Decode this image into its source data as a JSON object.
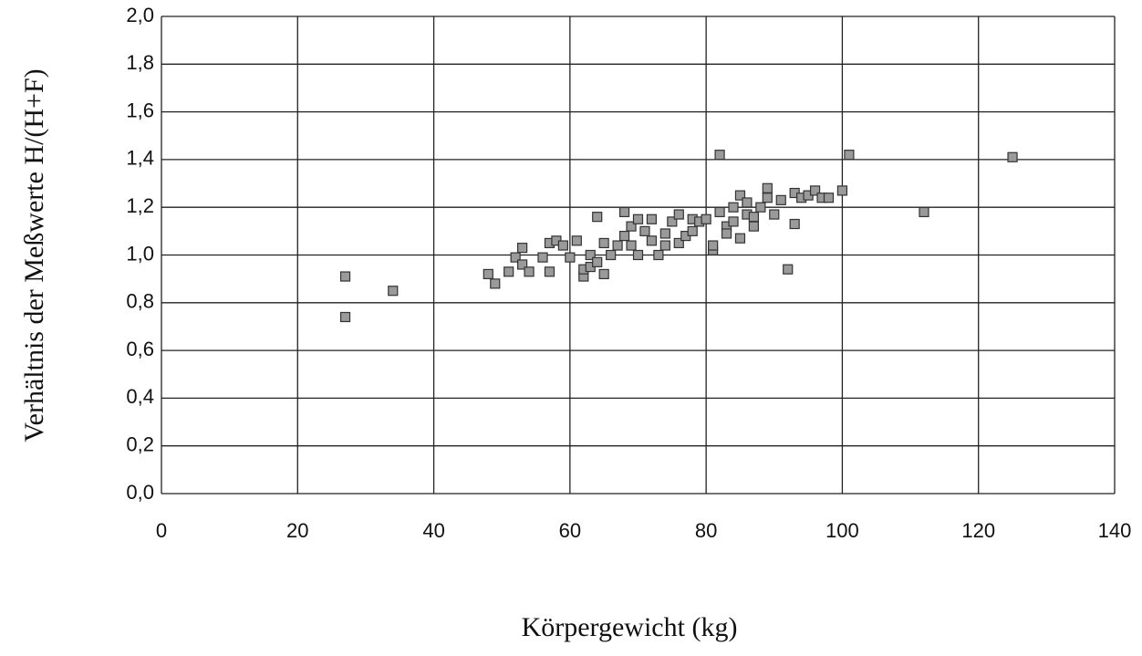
{
  "chart_data": {
    "type": "scatter",
    "xlabel": "Körpergewicht  (kg)",
    "ylabel": "Verhältnis der Meßwerte H/(H+F)",
    "x": [
      27,
      27,
      34,
      48,
      49,
      51,
      52,
      53,
      53,
      54,
      56,
      57,
      57,
      58,
      59,
      60,
      61,
      62,
      62,
      63,
      63,
      64,
      64,
      65,
      65,
      66,
      67,
      68,
      68,
      69,
      69,
      70,
      70,
      71,
      72,
      72,
      73,
      74,
      74,
      75,
      76,
      76,
      77,
      78,
      78,
      82,
      79,
      80,
      81,
      81,
      82,
      83,
      83,
      84,
      84,
      85,
      85,
      86,
      86,
      87,
      87,
      88,
      89,
      89,
      90,
      91,
      92,
      93,
      93,
      94,
      95,
      96,
      97,
      98,
      100,
      101,
      112,
      125
    ],
    "values": [
      0.91,
      0.74,
      0.85,
      0.92,
      0.88,
      0.93,
      0.99,
      1.03,
      0.96,
      0.93,
      0.99,
      1.05,
      0.93,
      1.06,
      1.04,
      0.99,
      1.06,
      0.91,
      0.94,
      1.0,
      0.95,
      1.16,
      0.97,
      0.92,
      1.05,
      1.0,
      1.04,
      1.18,
      1.08,
      1.12,
      1.04,
      1.0,
      1.15,
      1.1,
      1.06,
      1.15,
      1.0,
      1.09,
      1.04,
      1.14,
      1.17,
      1.05,
      1.08,
      1.1,
      1.15,
      1.42,
      1.14,
      1.15,
      1.02,
      1.04,
      1.18,
      1.12,
      1.09,
      1.2,
      1.14,
      1.25,
      1.07,
      1.22,
      1.17,
      1.12,
      1.16,
      1.2,
      1.28,
      1.24,
      1.17,
      1.23,
      0.94,
      1.26,
      1.13,
      1.24,
      1.25,
      1.27,
      1.24,
      1.24,
      1.27,
      1.42,
      1.18,
      1.41
    ],
    "color": "#9a9a9a",
    "xlim": [
      0,
      140
    ],
    "xticks": [
      0,
      20,
      40,
      60,
      80,
      100,
      120,
      140
    ],
    "ylim": [
      0,
      2
    ],
    "yticks": [
      {
        "value": 0,
        "label": "0,0"
      },
      {
        "value": 0.2,
        "label": "0,2"
      },
      {
        "value": 0.4,
        "label": "0,4"
      },
      {
        "value": 0.6,
        "label": "0,6"
      },
      {
        "value": 0.8,
        "label": "0,8"
      },
      {
        "value": 1.0,
        "label": "1,0"
      },
      {
        "value": 1.2,
        "label": "1,2"
      },
      {
        "value": 1.4,
        "label": "1,4"
      },
      {
        "value": 1.6,
        "label": "1,6"
      },
      {
        "value": 1.8,
        "label": "1,8"
      },
      {
        "value": 2.0,
        "label": "2,0"
      }
    ],
    "grid": true
  }
}
